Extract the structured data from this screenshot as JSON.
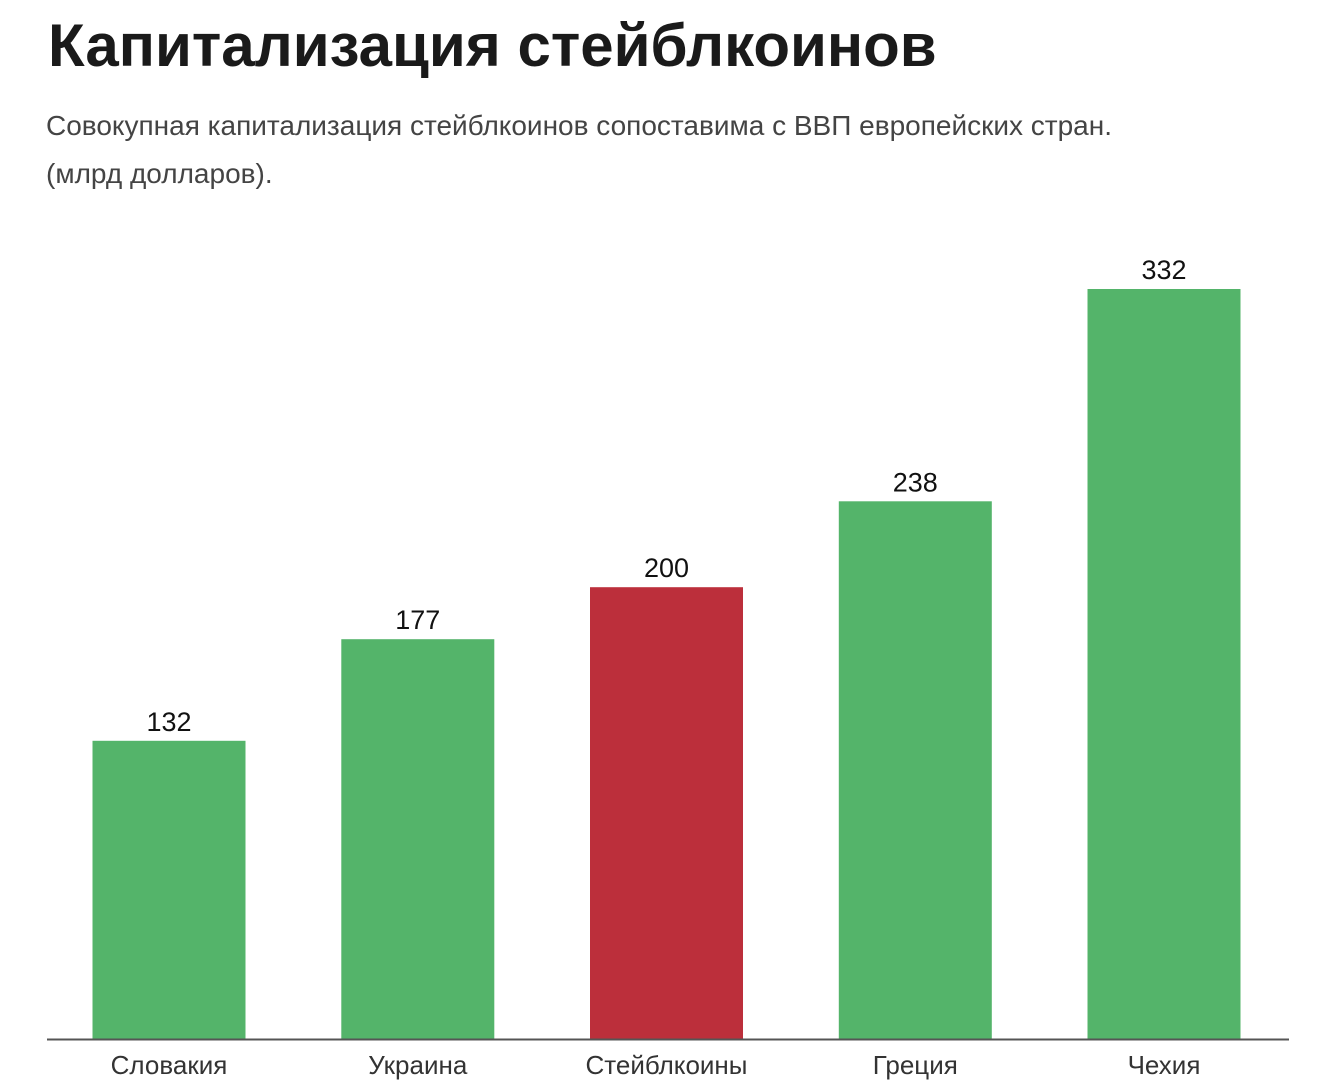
{
  "title": "Капитализация стейблкоинов",
  "subtitle_line1": "Совокупная капитализация стейблкоинов сопоставима с ВВП европейских стран.",
  "subtitle_line2": "(млрд долларов).",
  "colors": {
    "default_bar": "#54b46a",
    "highlight_bar": "#bc2f3b",
    "baseline": "#555555"
  },
  "chart_data": {
    "type": "bar",
    "title": "Капитализация стейблкоинов",
    "subtitle": "Совокупная капитализация стейблкоинов сопоставима с ВВП европейских стран. (млрд долларов).",
    "xlabel": "",
    "ylabel": "",
    "categories": [
      "Словакия",
      "Украина",
      "Стейблкоины",
      "Греция",
      "Чехия"
    ],
    "values": [
      132,
      177,
      200,
      238,
      332
    ],
    "highlight": "Стейблкоины",
    "ylim": [
      0,
      332
    ],
    "grid": false,
    "legend": "none"
  }
}
